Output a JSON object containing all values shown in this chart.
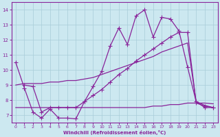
{
  "xlabel": "Windchill (Refroidissement éolien,°C)",
  "background_color": "#cce8f0",
  "grid_color": "#a8ccd8",
  "line_color": "#882299",
  "xlim": [
    -0.5,
    23.5
  ],
  "ylim": [
    6.5,
    14.5
  ],
  "yticks": [
    7,
    8,
    9,
    10,
    11,
    12,
    13,
    14
  ],
  "xticks": [
    0,
    1,
    2,
    3,
    4,
    5,
    6,
    7,
    8,
    9,
    10,
    11,
    12,
    13,
    14,
    15,
    16,
    17,
    18,
    19,
    20,
    21,
    22,
    23
  ],
  "line1_x": [
    0,
    1,
    2,
    3,
    4,
    5,
    6,
    7,
    8,
    9,
    10,
    11,
    12,
    13,
    14,
    15,
    16,
    17,
    18,
    19,
    20,
    21,
    22,
    23
  ],
  "line1_y": [
    10.5,
    8.8,
    7.2,
    6.8,
    7.4,
    6.8,
    6.8,
    6.75,
    7.9,
    8.9,
    9.9,
    11.6,
    12.8,
    11.7,
    13.6,
    14.0,
    12.2,
    13.5,
    13.4,
    12.6,
    10.2,
    7.9,
    7.5,
    7.5
  ],
  "line2_x": [
    1,
    2,
    3,
    4,
    5,
    6,
    7,
    8,
    9,
    10,
    11,
    12,
    13,
    14,
    15,
    16,
    17,
    18,
    19,
    20,
    21,
    22,
    23
  ],
  "line2_y": [
    9.0,
    8.9,
    7.2,
    7.5,
    7.5,
    7.5,
    7.5,
    7.9,
    8.3,
    8.7,
    9.2,
    9.7,
    10.1,
    10.6,
    11.0,
    11.4,
    11.8,
    12.2,
    12.5,
    12.5,
    7.8,
    7.6,
    7.5
  ],
  "line3_x": [
    0,
    1,
    2,
    3,
    4,
    5,
    6,
    7,
    8,
    9,
    10,
    11,
    12,
    13,
    14,
    15,
    16,
    17,
    18,
    19,
    20,
    21,
    22,
    23
  ],
  "line3_y": [
    9.0,
    9.1,
    9.1,
    9.1,
    9.2,
    9.2,
    9.3,
    9.3,
    9.4,
    9.5,
    9.7,
    9.9,
    10.1,
    10.3,
    10.5,
    10.7,
    10.9,
    11.2,
    11.4,
    11.6,
    11.8,
    7.9,
    7.65,
    7.5
  ],
  "line4_x": [
    0,
    1,
    2,
    3,
    4,
    5,
    6,
    7,
    8,
    9,
    10,
    11,
    12,
    13,
    14,
    15,
    16,
    17,
    18,
    19,
    20,
    21,
    22,
    23
  ],
  "line4_y": [
    7.5,
    7.5,
    7.5,
    7.5,
    7.5,
    7.5,
    7.5,
    7.5,
    7.5,
    7.5,
    7.5,
    7.5,
    7.5,
    7.5,
    7.5,
    7.5,
    7.6,
    7.6,
    7.7,
    7.7,
    7.8,
    7.8,
    7.8,
    7.75
  ]
}
